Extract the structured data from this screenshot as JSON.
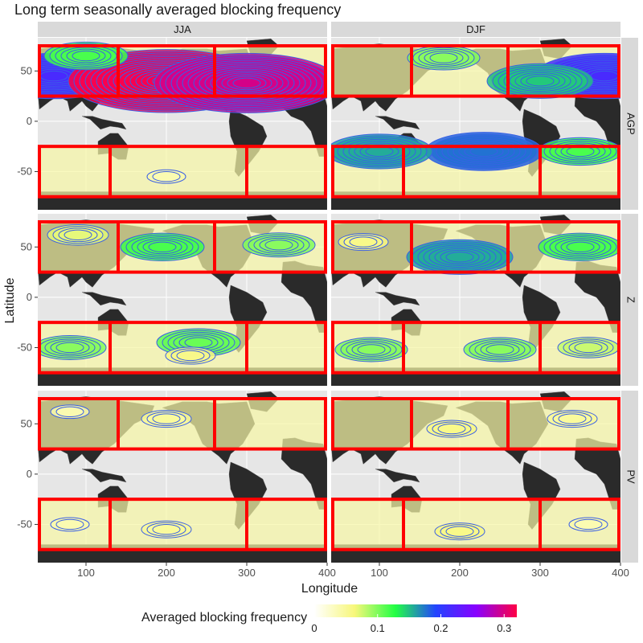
{
  "chart_data": {
    "type": "heatmap",
    "title": "Long term seasonally averaged blocking frequency",
    "xlabel": "Longitude",
    "ylabel": "Latitude",
    "xlim": [
      40,
      400
    ],
    "ylim": [
      -90,
      90
    ],
    "x_ticks": [
      100,
      200,
      300,
      400
    ],
    "y_ticks": [
      50,
      0,
      -50
    ],
    "columns": [
      "JJA",
      "DJF"
    ],
    "rows": [
      "AGP",
      "Z",
      "PV"
    ],
    "colorbar": {
      "title": "Averaged blocking frequency",
      "range": [
        0,
        0.32
      ],
      "ticks": [
        0,
        0.1,
        0.2,
        0.3
      ],
      "colors": [
        "#ffffff",
        "#f7f77a",
        "#22ff44",
        "#2244ff",
        "#8800ff",
        "#ff0044"
      ]
    },
    "sector_boxes": {
      "northern": {
        "lat": [
          25,
          75
        ],
        "lon_dividers": [
          140,
          260
        ]
      },
      "southern": {
        "lat": [
          -75,
          -25
        ],
        "lon_dividers": [
          130,
          300
        ]
      }
    },
    "panels": [
      {
        "row": "AGP",
        "col": "JJA",
        "max_value": 0.32,
        "hotspots": [
          {
            "lon": 60,
            "lat": 45,
            "value": 0.22
          },
          {
            "lon": 200,
            "lat": 40,
            "value": 0.32
          },
          {
            "lon": 300,
            "lat": 38,
            "value": 0.3
          },
          {
            "lon": 100,
            "lat": 65,
            "value": 0.12
          },
          {
            "lon": 200,
            "lat": -55,
            "value": 0.04
          }
        ]
      },
      {
        "row": "AGP",
        "col": "DJF",
        "max_value": 0.22,
        "hotspots": [
          {
            "lon": 380,
            "lat": 45,
            "value": 0.22
          },
          {
            "lon": 300,
            "lat": 40,
            "value": 0.15
          },
          {
            "lon": 180,
            "lat": 63,
            "value": 0.1
          },
          {
            "lon": 230,
            "lat": -30,
            "value": 0.18
          },
          {
            "lon": 100,
            "lat": -30,
            "value": 0.16
          },
          {
            "lon": 350,
            "lat": -30,
            "value": 0.12
          }
        ]
      },
      {
        "row": "Z",
        "col": "JJA",
        "max_value": 0.12,
        "hotspots": [
          {
            "lon": 195,
            "lat": 50,
            "value": 0.12
          },
          {
            "lon": 340,
            "lat": 52,
            "value": 0.1
          },
          {
            "lon": 90,
            "lat": 62,
            "value": 0.07
          },
          {
            "lon": 80,
            "lat": -50,
            "value": 0.1
          },
          {
            "lon": 240,
            "lat": -45,
            "value": 0.11
          },
          {
            "lon": 230,
            "lat": -58,
            "value": 0.06
          }
        ]
      },
      {
        "row": "Z",
        "col": "DJF",
        "max_value": 0.16,
        "hotspots": [
          {
            "lon": 200,
            "lat": 40,
            "value": 0.16
          },
          {
            "lon": 350,
            "lat": 50,
            "value": 0.12
          },
          {
            "lon": 80,
            "lat": 55,
            "value": 0.06
          },
          {
            "lon": 90,
            "lat": -52,
            "value": 0.1
          },
          {
            "lon": 250,
            "lat": -52,
            "value": 0.1
          },
          {
            "lon": 360,
            "lat": -50,
            "value": 0.08
          }
        ]
      },
      {
        "row": "PV",
        "col": "JJA",
        "max_value": 0.06,
        "hotspots": [
          {
            "lon": 200,
            "lat": 55,
            "value": 0.05
          },
          {
            "lon": 80,
            "lat": 62,
            "value": 0.04
          },
          {
            "lon": 200,
            "lat": -55,
            "value": 0.05
          },
          {
            "lon": 80,
            "lat": -50,
            "value": 0.04
          }
        ]
      },
      {
        "row": "PV",
        "col": "DJF",
        "max_value": 0.07,
        "hotspots": [
          {
            "lon": 190,
            "lat": 45,
            "value": 0.06
          },
          {
            "lon": 340,
            "lat": 55,
            "value": 0.05
          },
          {
            "lon": 200,
            "lat": -57,
            "value": 0.06
          },
          {
            "lon": 360,
            "lat": -50,
            "value": 0.04
          }
        ]
      }
    ]
  }
}
